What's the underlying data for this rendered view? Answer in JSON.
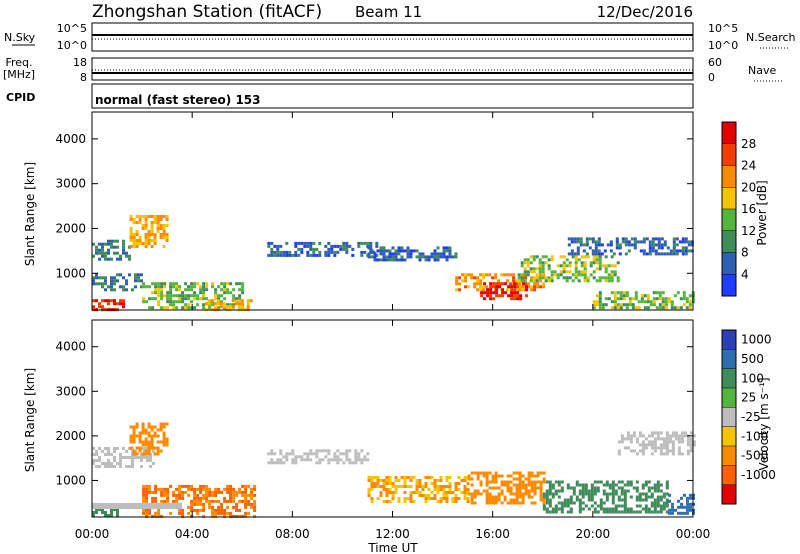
{
  "header": {
    "station": "Zhongshan Station (fitACF)",
    "beam": "Beam 11",
    "date": "12/Dec/2016"
  },
  "summary": {
    "nsky_label": "N.Sky",
    "nsky_ticks": [
      "10^5",
      "10^0"
    ],
    "nsearch_label": "N.Search",
    "nsearch_ticks": [
      "10^5",
      "10^0"
    ],
    "freq_label_1": "Freq.",
    "freq_label_2": "[MHz]",
    "freq_ticks": [
      "18",
      "8"
    ],
    "nave_label": "Nave",
    "nave_ticks": [
      "60",
      "0"
    ],
    "cpid_label": "CPID",
    "cpid_text": "normal (fast stereo) 153"
  },
  "axes": {
    "xlabel": "Time UT",
    "ylabel": "Slant Range [km]",
    "x_tick_labels": [
      "00:00",
      "04:00",
      "08:00",
      "12:00",
      "16:00",
      "20:00",
      "00:00"
    ],
    "y_tick_labels": [
      "1000",
      "2000",
      "3000",
      "4000"
    ],
    "y_tick_values": [
      1000,
      2000,
      3000,
      4000
    ]
  },
  "power_colorbar": {
    "label": "Power [dB]",
    "tick_labels": [
      "4",
      "8",
      "12",
      "16",
      "20",
      "24",
      "28"
    ],
    "colors": [
      "#1f3cff",
      "#2f5fb0",
      "#3f8c5a",
      "#55b43c",
      "#f5c400",
      "#ff8a00",
      "#f04000",
      "#e00000"
    ]
  },
  "velocity_colorbar": {
    "label": "Velocity [m s⁻¹]",
    "tick_labels": [
      "1000",
      "500",
      "100",
      "25",
      "-25",
      "-100",
      "-500",
      "-1000"
    ],
    "colors": [
      "#2c3fb5",
      "#2f6fb0",
      "#3f8c5a",
      "#55b43c",
      "#bdbdbd",
      "#f5c400",
      "#ff8a00",
      "#ff6000",
      "#e00000"
    ]
  },
  "chart_data": [
    {
      "type": "heatmap",
      "title": "Power",
      "xlabel": "Time UT",
      "ylabel": "Slant Range [km]",
      "xlim": [
        "00:00",
        "24:00"
      ],
      "ylim": [
        180,
        4600
      ],
      "colorbar": "Power [dB]",
      "note": "approximate scatter regions read from the plot",
      "regions": [
        {
          "t": [
            0.0,
            1.5
          ],
          "r": [
            1300,
            1750
          ],
          "value": 8
        },
        {
          "t": [
            0.0,
            1.3
          ],
          "r": [
            200,
            420
          ],
          "value": 28
        },
        {
          "t": [
            0.0,
            2.0
          ],
          "r": [
            600,
            1000
          ],
          "value": 8
        },
        {
          "t": [
            1.5,
            3.0
          ],
          "r": [
            1600,
            2300
          ],
          "value": 20
        },
        {
          "t": [
            2.0,
            6.0
          ],
          "r": [
            200,
            800
          ],
          "value": 14
        },
        {
          "t": [
            4.5,
            6.3
          ],
          "r": [
            200,
            420
          ],
          "value": 20
        },
        {
          "t": [
            7.0,
            11.5
          ],
          "r": [
            1400,
            1700
          ],
          "value": 6
        },
        {
          "t": [
            11.0,
            14.5
          ],
          "r": [
            1300,
            1600
          ],
          "value": 6
        },
        {
          "t": [
            14.5,
            18.0
          ],
          "r": [
            600,
            1000
          ],
          "value": 22
        },
        {
          "t": [
            15.5,
            17.3
          ],
          "r": [
            450,
            800
          ],
          "value": 28
        },
        {
          "t": [
            17.0,
            21.0
          ],
          "r": [
            800,
            1400
          ],
          "value": 14
        },
        {
          "t": [
            19.0,
            24.0
          ],
          "r": [
            1400,
            1800
          ],
          "value": 6
        },
        {
          "t": [
            20.0,
            24.0
          ],
          "r": [
            250,
            600
          ],
          "value": 14
        }
      ]
    },
    {
      "type": "heatmap",
      "title": "Velocity",
      "xlabel": "Time UT",
      "ylabel": "Slant Range [km]",
      "xlim": [
        "00:00",
        "24:00"
      ],
      "ylim": [
        180,
        4600
      ],
      "colorbar": "Velocity [m s⁻¹]",
      "note": "approximate scatter regions read from the plot",
      "regions": [
        {
          "t": [
            0.0,
            2.5
          ],
          "r": [
            1300,
            1750
          ],
          "value": 0
        },
        {
          "t": [
            0.0,
            1.0
          ],
          "r": [
            200,
            450
          ],
          "value": 300
        },
        {
          "t": [
            1.5,
            3.0
          ],
          "r": [
            1600,
            2300
          ],
          "value": -300
        },
        {
          "t": [
            2.0,
            6.5
          ],
          "r": [
            200,
            900
          ],
          "value": -500
        },
        {
          "t": [
            7.0,
            11.0
          ],
          "r": [
            1400,
            1700
          ],
          "value": 0
        },
        {
          "t": [
            11.0,
            15.0
          ],
          "r": [
            500,
            1100
          ],
          "value": -100
        },
        {
          "t": [
            15.0,
            18.0
          ],
          "r": [
            500,
            1200
          ],
          "value": -300
        },
        {
          "t": [
            18.0,
            23.0
          ],
          "r": [
            300,
            1000
          ],
          "value": 300
        },
        {
          "t": [
            21.0,
            24.0
          ],
          "r": [
            1600,
            2100
          ],
          "value": 0
        },
        {
          "t": [
            23.0,
            24.0
          ],
          "r": [
            250,
            700
          ],
          "value": 800
        }
      ]
    }
  ]
}
